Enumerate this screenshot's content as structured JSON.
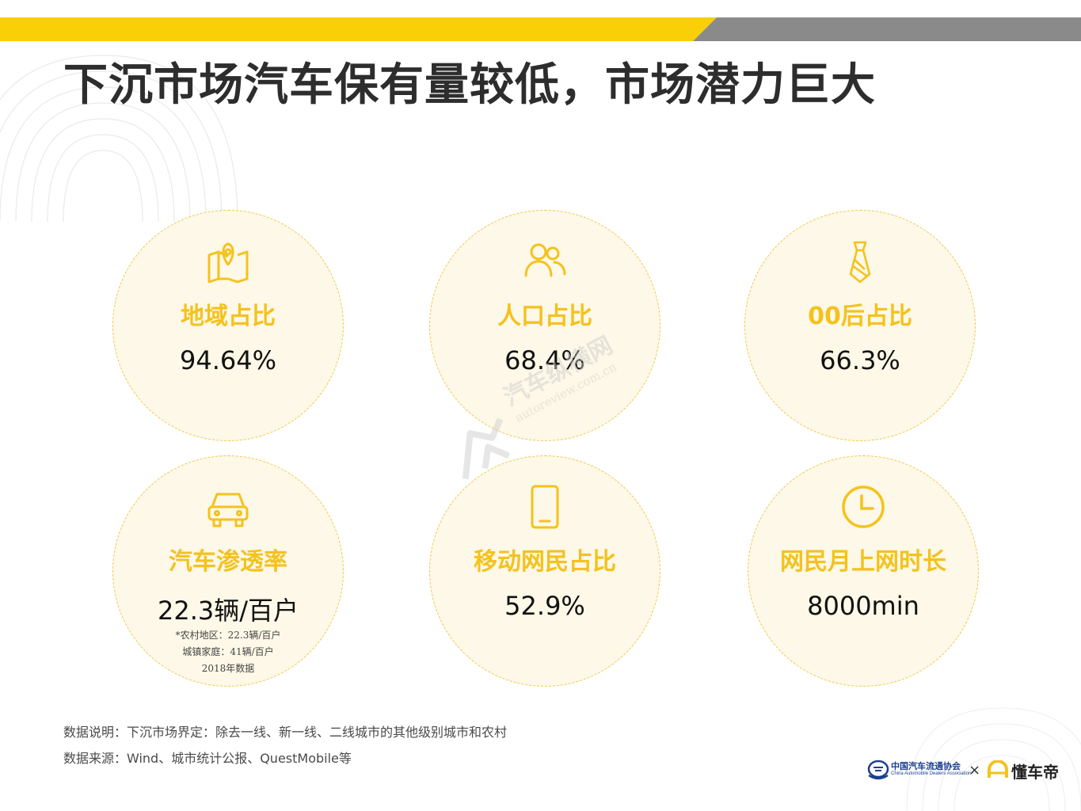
{
  "title": "下沉市场汽车保有量较低，市场潜力巨大",
  "colors": {
    "yellow": "#f9cf07",
    "gray": "#8a8a8a",
    "accent": "#f4c21c",
    "circle_fill": "#fdf8e7"
  },
  "cards": [
    {
      "icon": "map-pin-icon",
      "label": "地域占比",
      "value": "94.64%"
    },
    {
      "icon": "people-icon",
      "label": "人口占比",
      "value": "68.4%"
    },
    {
      "icon": "tie-icon",
      "label": "00后占比",
      "value": "66.3%"
    },
    {
      "icon": "car-icon",
      "label": "汽车渗透率",
      "value": "22.3辆/百户",
      "notes": [
        "*农村地区：22.3辆/百户",
        "城镇家庭：41辆/百户",
        "2018年数据"
      ]
    },
    {
      "icon": "mobile-phone-icon",
      "label": "移动网民占比",
      "value": "52.9%"
    },
    {
      "icon": "clock-icon",
      "label": "网民月上网时长",
      "value": "8000min"
    }
  ],
  "watermark": {
    "cn": "汽车纵横网",
    "en": "autoreview.com.cn"
  },
  "footnotes": {
    "description": "数据说明：下沉市场界定：除去一线、新一线、二线城市的其他级别城市和农村",
    "source": "数据来源：Wind、城市统计公报、QuestMobile等"
  },
  "logos": {
    "association_cn": "中国汽车流通协会",
    "association_en": "China Automobile Dealers Association",
    "separator": "×",
    "partner": "懂车帝"
  }
}
